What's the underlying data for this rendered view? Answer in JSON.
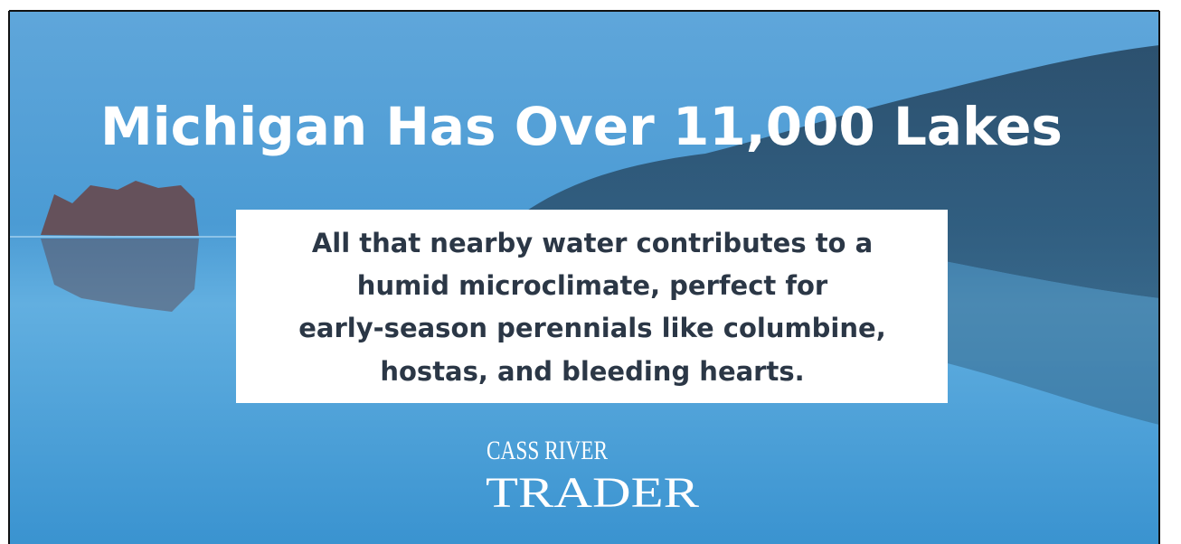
{
  "headline": "Michigan Has Over 11,000 Lakes",
  "message": {
    "lines": [
      "All that nearby water contributes to a",
      "humid microclimate, perfect for",
      "early-season perennials like columbine,",
      "hostas, and bleeding hearts."
    ]
  },
  "logo": {
    "line1": "CASS RIVER",
    "line2": "TRADER"
  }
}
